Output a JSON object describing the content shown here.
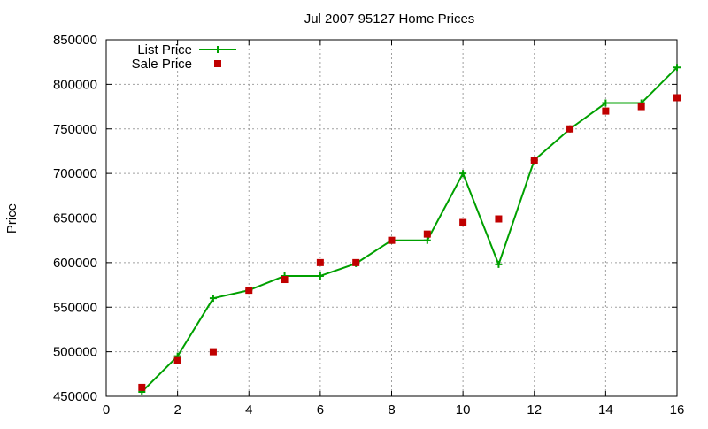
{
  "chart_data": {
    "type": "line",
    "title": "Jul 2007 95127 Home Prices",
    "xlabel": "",
    "ylabel": "Price",
    "xlim": [
      0,
      16
    ],
    "ylim": [
      450000,
      850000
    ],
    "xticks": [
      "0",
      "2",
      "4",
      "6",
      "8",
      "10",
      "12",
      "14",
      "16"
    ],
    "yticks": [
      "450000",
      "500000",
      "550000",
      "600000",
      "650000",
      "700000",
      "750000",
      "800000",
      "850000"
    ],
    "grid": true,
    "legend_position": "top-left",
    "series": [
      {
        "name": "List Price",
        "style": "line-with-plus-markers",
        "color": "#00a000",
        "x": [
          1,
          2,
          3,
          4,
          5,
          6,
          7,
          8,
          9,
          10,
          11,
          12,
          13,
          14,
          15,
          16
        ],
        "y": [
          455000,
          495000,
          560000,
          569000,
          585000,
          585000,
          599000,
          625000,
          625000,
          700000,
          598000,
          715000,
          750000,
          779000,
          779000,
          819000
        ]
      },
      {
        "name": "Sale Price",
        "style": "square-markers",
        "color": "#c00000",
        "x": [
          1,
          2,
          3,
          4,
          5,
          6,
          7,
          8,
          9,
          10,
          11,
          12,
          13,
          14,
          15,
          16
        ],
        "y": [
          460000,
          490000,
          500000,
          569000,
          581000,
          600000,
          600000,
          625000,
          632000,
          645000,
          649000,
          715000,
          750000,
          770000,
          775000,
          785000
        ]
      }
    ]
  }
}
